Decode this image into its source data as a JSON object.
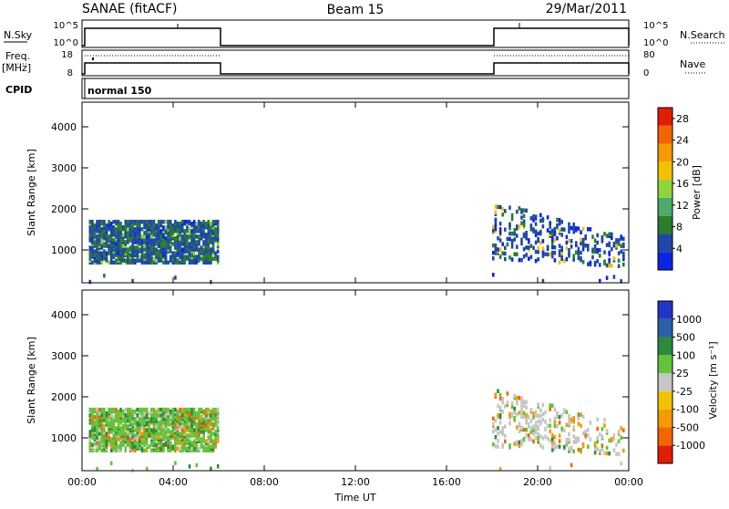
{
  "header": {
    "station": "SANAE (fitACF)",
    "beam": "Beam 15",
    "date": "29/Mar/2011"
  },
  "top_panels": {
    "nsky_label": "N.Sky",
    "nsky_ticks": [
      "10^5",
      "10^0"
    ],
    "nsearch_label": "N.Search",
    "nsearch_ticks": [
      "10^5",
      "10^0"
    ],
    "freq_label": "Freq.",
    "freq_unit": "[MHz]",
    "freq_ticks": [
      "18",
      "8"
    ],
    "nave_label": "Nave",
    "nave_ticks": [
      "80",
      "0"
    ],
    "cpid_label": "CPID",
    "cpid_value": "normal 150"
  },
  "colors": {
    "power": [
      "#0a24e6",
      "#1f48a8",
      "#2a7d2a",
      "#4cab6a",
      "#8ed43b",
      "#f2c200",
      "#f59a00",
      "#f26500",
      "#e21d00"
    ],
    "velocity": [
      "#2334c8",
      "#2b5fa8",
      "#2d8a3a",
      "#62c43a",
      "#c6c6c6",
      "#f2c200",
      "#f59a00",
      "#f26500",
      "#e21d00"
    ]
  },
  "chart_data": [
    {
      "type": "heatmap",
      "name": "power",
      "ylabel": "Slant Range [km]",
      "xlabel": "",
      "xlim": [
        "00:00",
        "24:00"
      ],
      "ylim": [
        200,
        4600
      ],
      "x_ticks": [
        "00:00",
        "04:00",
        "08:00",
        "12:00",
        "16:00",
        "20:00",
        "00:00"
      ],
      "y_ticks": [
        1000,
        2000,
        3000,
        4000
      ],
      "colorbar": {
        "label": "Power [dB]",
        "ticks": [
          "4",
          "8",
          "12",
          "16",
          "20",
          "24",
          "28"
        ],
        "range": [
          0,
          30
        ]
      },
      "regions": [
        {
          "t_start": 0.3,
          "t_end": 6.0,
          "range_min": 700,
          "range_max": 1700,
          "dominant_power_db": 6,
          "peak_power_db": 14
        },
        {
          "t_start": 18.0,
          "t_end": 23.8,
          "range_min": 600,
          "range_max": 2200,
          "dominant_power_db": 5,
          "peak_power_db": 18
        }
      ]
    },
    {
      "type": "heatmap",
      "name": "velocity",
      "ylabel": "Slant Range [km]",
      "xlabel": "Time UT",
      "xlim": [
        "00:00",
        "24:00"
      ],
      "ylim": [
        200,
        4600
      ],
      "x_ticks": [
        "00:00",
        "04:00",
        "08:00",
        "12:00",
        "16:00",
        "20:00",
        "00:00"
      ],
      "y_ticks": [
        1000,
        2000,
        3000,
        4000
      ],
      "colorbar": {
        "label": "Velocity [m s⁻¹]",
        "ticks": [
          "1000",
          "500",
          "100",
          "25",
          "-25",
          "-100",
          "-500",
          "-1000"
        ]
      },
      "regions": [
        {
          "t_start": 0.3,
          "t_end": 6.0,
          "range_min": 700,
          "range_max": 1700,
          "dominant_velocity_ms": 100
        },
        {
          "t_start": 18.0,
          "t_end": 23.8,
          "range_min": 600,
          "range_max": 2200,
          "dominant_velocity_ms": 0
        }
      ]
    }
  ]
}
